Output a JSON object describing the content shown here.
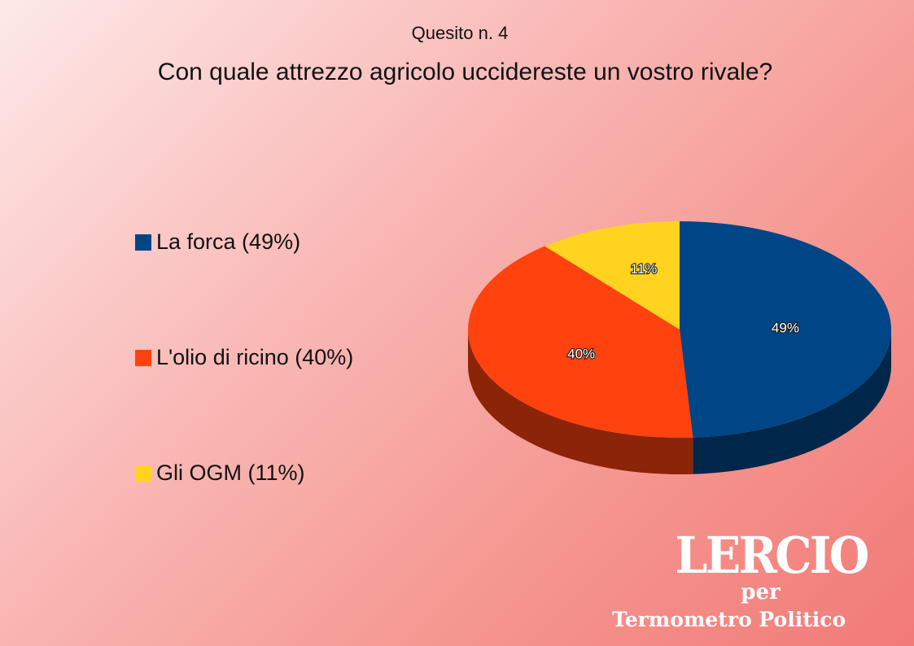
{
  "chart_data": {
    "type": "pie",
    "title": "Con quale attrezzo agricolo uccidereste un vostro rivale?",
    "subtitle": "Quesito n. 4",
    "three_d": true,
    "legend_position": "left",
    "slices": [
      {
        "label": "La forca (49%)",
        "value": 49,
        "data_label": "49%",
        "color": "#004586"
      },
      {
        "label": "L'olio di ricino (40%)",
        "value": 40,
        "data_label": "40%",
        "color": "#ff420e"
      },
      {
        "label": "Gli OGM (11%)",
        "value": 11,
        "data_label": "11%",
        "color": "#ffd320"
      }
    ]
  },
  "logo": {
    "name": "LERCIO",
    "per": "per",
    "sub": "Termometro Politico"
  }
}
